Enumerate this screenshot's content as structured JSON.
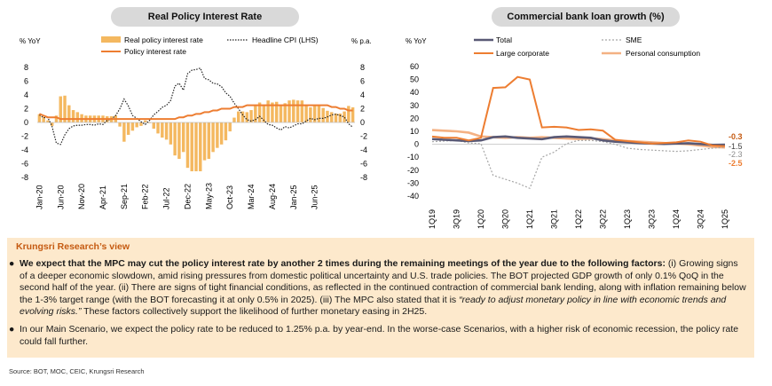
{
  "left_title": "Real Policy Interest Rate",
  "right_title": "Commercial bank loan growth (%)",
  "chart_data": [
    {
      "type": "bar",
      "title": "Real Policy Interest Rate",
      "ylabel_left": "% YoY",
      "ylabel_right": "% p.a.",
      "ylim": [
        -8,
        8
      ],
      "y_ticks": [
        "8",
        "6",
        "4",
        "2",
        "0",
        "-2",
        "-4",
        "-6",
        "-8"
      ],
      "x_ticks": [
        "Jan-20",
        "Jun-20",
        "Nov-20",
        "Apr-21",
        "Sep-21",
        "Feb-22",
        "Jul-22",
        "Dec-22",
        "May-23",
        "Oct-23",
        "Mar-24",
        "Aug-24",
        "Jan-25",
        "Jun-25"
      ],
      "legend": [
        "Real policy interest rate",
        "Headline CPI (LHS)",
        "Policy interest rate"
      ],
      "series": [
        {
          "name": "Real policy interest rate",
          "type": "bar",
          "values": [
            1.2,
            0.8,
            0.3,
            -0.5,
            1.0,
            3.8,
            3.9,
            2.5,
            1.8,
            1.5,
            1.2,
            1.0,
            1.0,
            1.0,
            1.0,
            1.0,
            0.9,
            0.9,
            1.0,
            -0.6,
            -2.8,
            -1.8,
            -1.2,
            -0.7,
            -0.5,
            0.3,
            -0.1,
            -0.9,
            -1.6,
            -2.2,
            -2.5,
            -3.2,
            -4.8,
            -5.3,
            -4.3,
            -6.6,
            -7.1,
            -7.1,
            -7.1,
            -5.5,
            -5.3,
            -4.3,
            -3.7,
            -3.2,
            -2.6,
            -1.3,
            0.7,
            1.6,
            1.6,
            1.5,
            1.8,
            2.6,
            2.9,
            2.6,
            3.2,
            2.9,
            3.0,
            2.4,
            2.8,
            3.2,
            3.3,
            3.2,
            3.2,
            2.4,
            2.2,
            2.4,
            2.5,
            2.1,
            1.7,
            1.5,
            1.3,
            1.3,
            1.6,
            2.4,
            2.2
          ]
        },
        {
          "name": "Headline CPI (LHS)",
          "type": "line",
          "values": [
            1.1,
            0.7,
            0.7,
            -0.6,
            -3.0,
            -3.2,
            -1.8,
            -0.9,
            -0.5,
            -0.4,
            -0.4,
            -0.3,
            -0.3,
            -0.4,
            -0.2,
            -0.3,
            0.3,
            0.5,
            1.0,
            2.0,
            3.4,
            2.4,
            1.0,
            0.6,
            0.1,
            -0.3,
            0.3,
            1.1,
            1.6,
            2.2,
            2.5,
            3.2,
            5.3,
            5.7,
            4.7,
            7.1,
            7.6,
            7.7,
            7.9,
            6.4,
            6.2,
            5.7,
            5.6,
            5.2,
            4.3,
            3.8,
            2.8,
            2.0,
            1.1,
            0.4,
            0.2,
            0.4,
            0.9,
            0.3,
            -0.3,
            -0.4,
            -0.8,
            -1.1,
            -0.6,
            -0.8,
            -0.5,
            -0.2,
            -0.2,
            0.2,
            0.6,
            0.4,
            0.6,
            0.6,
            0.8,
            1.1,
            1.2,
            1.0,
            0.8,
            -0.2,
            -0.7
          ]
        },
        {
          "name": "Policy interest rate",
          "type": "line",
          "values": [
            1.25,
            1.0,
            0.75,
            0.75,
            0.75,
            0.5,
            0.5,
            0.5,
            0.5,
            0.5,
            0.5,
            0.5,
            0.5,
            0.5,
            0.5,
            0.5,
            0.5,
            0.5,
            0.5,
            0.5,
            0.5,
            0.5,
            0.5,
            0.5,
            0.5,
            0.5,
            0.5,
            0.5,
            0.5,
            0.5,
            0.5,
            0.5,
            0.5,
            0.75,
            0.75,
            1.0,
            1.0,
            1.25,
            1.25,
            1.5,
            1.5,
            1.75,
            1.75,
            2.0,
            2.0,
            2.0,
            2.25,
            2.25,
            2.25,
            2.5,
            2.5,
            2.5,
            2.5,
            2.5,
            2.5,
            2.5,
            2.5,
            2.5,
            2.5,
            2.5,
            2.5,
            2.5,
            2.5,
            2.5,
            2.5,
            2.5,
            2.5,
            2.5,
            2.5,
            2.25,
            2.25,
            2.0,
            2.0,
            1.75,
            1.75
          ]
        }
      ]
    },
    {
      "type": "line",
      "title": "Commercial bank loan growth (%)",
      "ylabel": "% YoY",
      "ylim": [
        -40,
        60
      ],
      "y_ticks": [
        "60",
        "50",
        "40",
        "30",
        "20",
        "10",
        "0",
        "-10",
        "-20",
        "-30",
        "-40"
      ],
      "x": [
        "1Q19",
        "2Q19",
        "3Q19",
        "4Q19",
        "1Q20",
        "2Q20",
        "3Q20",
        "4Q20",
        "1Q21",
        "2Q21",
        "3Q21",
        "4Q21",
        "1Q22",
        "2Q22",
        "3Q22",
        "4Q22",
        "1Q23",
        "2Q23",
        "3Q23",
        "4Q23",
        "1Q24",
        "2Q24",
        "3Q24",
        "4Q24",
        "1Q25"
      ],
      "x_tick_labels": [
        "1Q19",
        "3Q19",
        "1Q20",
        "3Q20",
        "1Q21",
        "3Q21",
        "1Q22",
        "3Q22",
        "1Q23",
        "3Q23",
        "1Q24",
        "3Q24",
        "1Q25"
      ],
      "legend": [
        "Total",
        "SME",
        "Large corporate",
        "Personal consumption"
      ],
      "end_labels": [
        "-0.3",
        "-1.5",
        "-2.3",
        "-2.5"
      ],
      "series": [
        {
          "name": "Total",
          "color": "#595975",
          "values": [
            4.0,
            3.5,
            3.0,
            2.5,
            3.0,
            5.5,
            6.0,
            5.0,
            4.5,
            4.0,
            5.5,
            6.0,
            5.5,
            5.0,
            3.0,
            2.0,
            1.5,
            1.0,
            0.5,
            0.3,
            0.5,
            0.8,
            0.2,
            -0.5,
            -0.3
          ]
        },
        {
          "name": "SME",
          "color": "#a6a6a6",
          "values": [
            2.0,
            2.5,
            3.0,
            1.0,
            0.5,
            -24.0,
            -27.0,
            -30.0,
            -34.0,
            -10.0,
            -6.0,
            0.5,
            3.0,
            3.0,
            2.0,
            0.0,
            -3.0,
            -4.0,
            -4.5,
            -5.0,
            -5.5,
            -5.0,
            -4.0,
            -3.0,
            -2.3
          ]
        },
        {
          "name": "Large corporate",
          "color": "#ed7d31",
          "values": [
            6.0,
            5.0,
            5.0,
            3.0,
            5.0,
            43.5,
            44.0,
            52.0,
            50.0,
            13.0,
            13.5,
            13.0,
            11.0,
            11.5,
            10.5,
            3.5,
            2.5,
            1.5,
            0.5,
            1.0,
            1.5,
            3.0,
            2.0,
            -1.0,
            -1.5
          ]
        },
        {
          "name": "Personal consumption",
          "color": "#f4b183",
          "values": [
            11.0,
            10.5,
            10.0,
            9.0,
            6.0,
            5.5,
            5.0,
            5.5,
            5.0,
            5.5,
            5.0,
            4.5,
            4.0,
            4.5,
            4.0,
            3.0,
            2.5,
            2.0,
            1.5,
            1.0,
            0.5,
            0.0,
            -1.0,
            -2.0,
            -2.5
          ]
        }
      ]
    }
  ],
  "view": {
    "title": "Krungsri Research’s view",
    "p1_bold": "We expect that the MPC may cut the policy interest rate by another 2 times during the remaining meetings of the year due to the following factors:",
    "p1_a": " (i) Growing signs of a deeper economic slowdown, amid rising pressures from domestic political uncertainty and U.S. trade policies. The BOT projected GDP growth of only 0.1% QoQ in the second half of the year. (ii) There are signs of tight financial conditions, as reflected in the continued contraction of commercial bank lending, along with inflation remaining below the 1-3% target range (with the BOT forecasting it at only 0.5% in 2025). (iii) The MPC also stated that it is ",
    "p1_italic": "“ready to adjust monetary policy in line with economic trends and evolving risks.”",
    "p1_b": " These factors collectively support the likelihood of further monetary easing in 2H25.",
    "p2": "In our Main Scenario, we expect the policy rate to be reduced to 1.25% p.a. by year-end. In the worse-case Scenarios, with a higher risk of economic recession, the policy rate could fall further."
  },
  "source": "Source: BOT, MOC, CEIC, Krungsri Research",
  "colors": {
    "orange": "#ed7d31",
    "bar": "#f4b860",
    "navy": "#595975",
    "sme": "#a6a6a6",
    "personal": "#f4b183",
    "box_bg": "#fde9cc",
    "box_title": "#c55a11"
  }
}
